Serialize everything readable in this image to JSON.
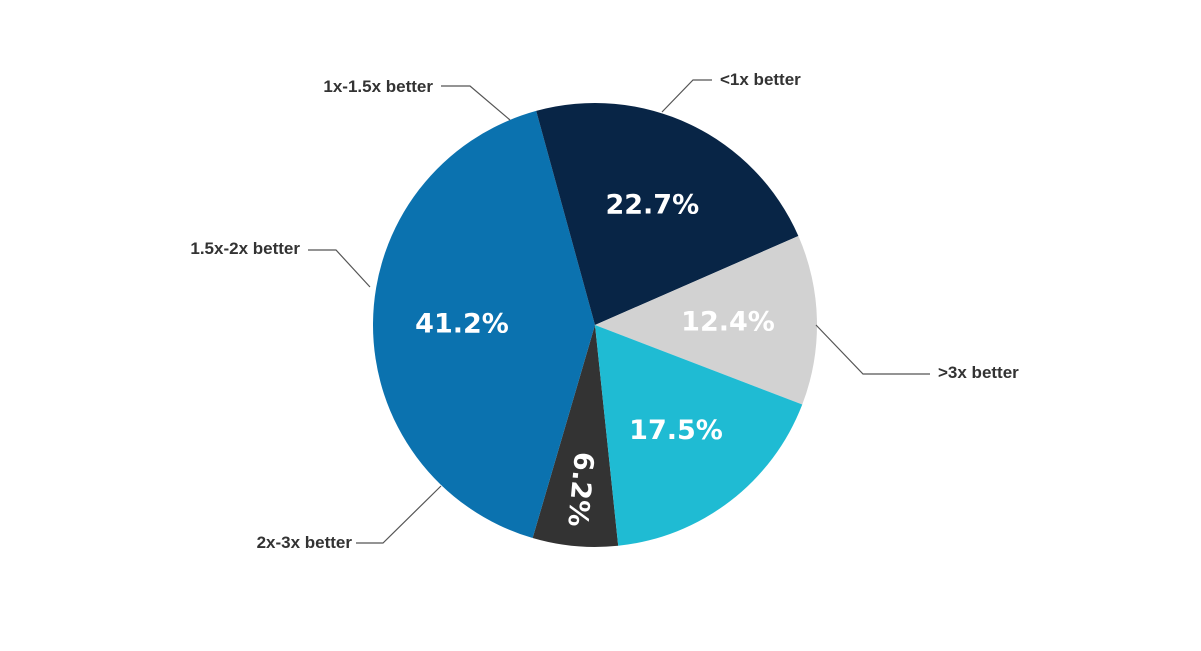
{
  "chart_data": {
    "type": "pie",
    "title": "",
    "start_angle_deg": 174,
    "direction": "clockwise",
    "slices": [
      {
        "category": "<1x better",
        "value": 6.2,
        "label": "6.2%",
        "color": "#333333",
        "rotated_label": true
      },
      {
        "category": ">3x better",
        "value": 41.2,
        "label": "41.2%",
        "color": "#0b72af"
      },
      {
        "category": "2x-3x better",
        "value": 22.7,
        "label": "22.7%",
        "color": "#082546"
      },
      {
        "category": "1.5x-2x better",
        "value": 12.4,
        "label": "12.4%",
        "color": "#d2d2d2"
      },
      {
        "category": "1x-1.5x better",
        "value": 17.5,
        "label": "17.5%",
        "color": "#1fbbd3"
      }
    ]
  }
}
